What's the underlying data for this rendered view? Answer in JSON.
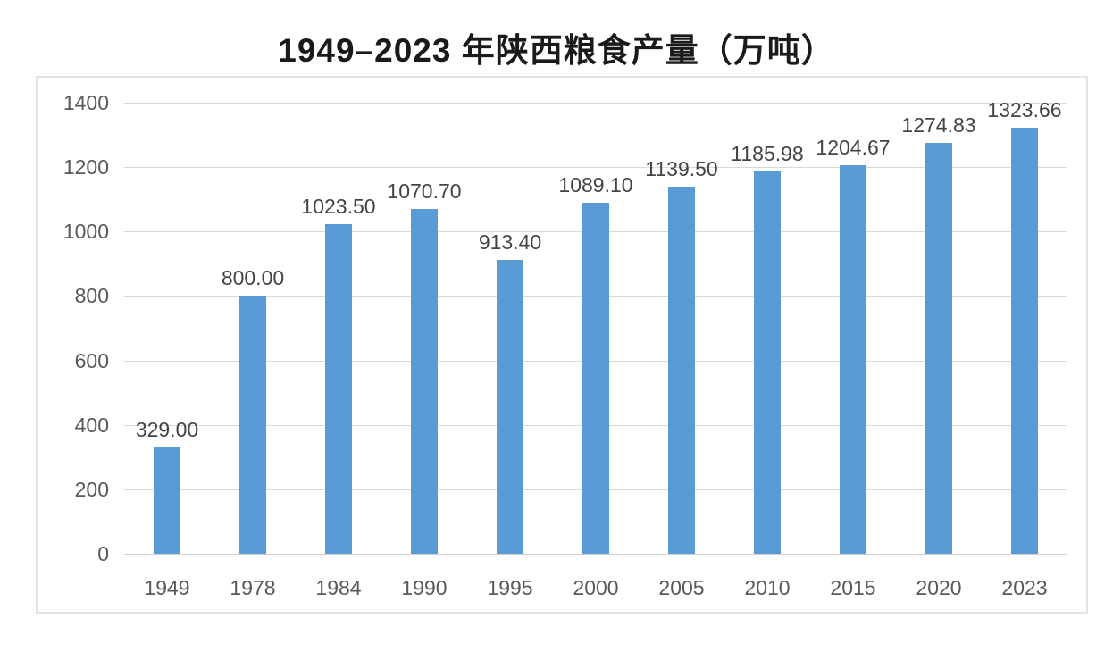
{
  "chart_data": {
    "type": "bar",
    "title": "1949–2023 年陕西粮食产量（万吨）",
    "categories": [
      "1949",
      "1978",
      "1984",
      "1990",
      "1995",
      "2000",
      "2005",
      "2010",
      "2015",
      "2020",
      "2023"
    ],
    "values": [
      329.0,
      800.0,
      1023.5,
      1070.7,
      913.4,
      1089.1,
      1139.5,
      1185.98,
      1204.67,
      1274.83,
      1323.66
    ],
    "value_labels": [
      "329.00",
      "800.00",
      "1023.50",
      "1070.70",
      "913.40",
      "1089.10",
      "1139.50",
      "1185.98",
      "1204.67",
      "1274.83",
      "1323.66"
    ],
    "xlabel": "",
    "ylabel": "",
    "ylim": [
      0,
      1400
    ],
    "yticks": [
      0,
      200,
      400,
      600,
      800,
      1000,
      1200,
      1400
    ],
    "grid": true,
    "legend": "none",
    "colors": {
      "bar": "#5b9bd5",
      "gridline": "#d9d9d9",
      "axis_labels": "#595959",
      "data_labels": "#444444",
      "title": "#1a1a1a",
      "plot_border": "#e3e3e3",
      "background": "#ffffff"
    }
  }
}
